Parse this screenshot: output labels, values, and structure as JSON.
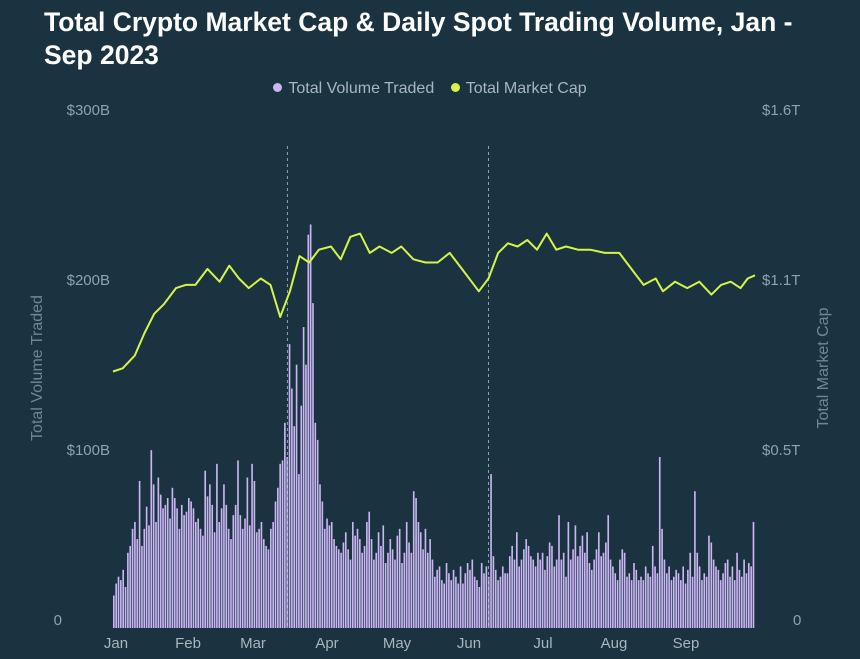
{
  "chart_data": {
    "type": "bar+line",
    "title": "Total Crypto Market Cap & Daily Spot Trading Volume, Jan - Sep 2023",
    "legend": [
      "Total Volume Traded",
      "Total Market Cap"
    ],
    "colors": {
      "volume": "#c9b6f2",
      "market_cap": "#d4f547",
      "background": "#1b3340"
    },
    "y_left": {
      "label": "Total Volume Traded",
      "ticks": [
        "$300B",
        "$200B",
        "$100B",
        "0"
      ],
      "ylim": [
        0,
        300
      ],
      "unit": "B USD"
    },
    "y_right": {
      "label": "Total Market Cap",
      "ticks": [
        "$1.6T",
        "$1.1T",
        "$0.5T",
        "0"
      ],
      "ylim": [
        0,
        1.6
      ],
      "unit": "T USD"
    },
    "x_ticks": [
      "Jan",
      "Feb",
      "Mar",
      "Apr",
      "May",
      "Jun",
      "Jul",
      "Aug",
      "Sep"
    ],
    "legend_position": "top-center",
    "grid": false,
    "vertical_markers_day": [
      73,
      156
    ],
    "volume_series": {
      "name": "Total Volume Traded",
      "days": [
        1,
        266
      ],
      "values_B": [
        19,
        26,
        30,
        28,
        34,
        24,
        44,
        48,
        58,
        62,
        52,
        86,
        48,
        58,
        71,
        60,
        104,
        84,
        62,
        88,
        78,
        70,
        72,
        76,
        64,
        82,
        76,
        70,
        58,
        72,
        66,
        68,
        76,
        74,
        70,
        62,
        64,
        58,
        54,
        92,
        77,
        84,
        72,
        56,
        96,
        62,
        70,
        84,
        72,
        58,
        52,
        66,
        72,
        98,
        66,
        58,
        64,
        88,
        60,
        96,
        86,
        56,
        58,
        62,
        52,
        48,
        46,
        58,
        62,
        74,
        82,
        96,
        98,
        120,
        100,
        166,
        140,
        118,
        154,
        90,
        130,
        176,
        154,
        230,
        236,
        190,
        120,
        110,
        84,
        74,
        58,
        64,
        60,
        62,
        52,
        48,
        46,
        44,
        50,
        56,
        46,
        40,
        62,
        54,
        58,
        52,
        44,
        48,
        62,
        68,
        52,
        40,
        44,
        56,
        48,
        60,
        38,
        44,
        52,
        46,
        40,
        54,
        58,
        38,
        44,
        62,
        50,
        44,
        80,
        76,
        62,
        56,
        46,
        58,
        44,
        52,
        40,
        30,
        34,
        36,
        28,
        26,
        38,
        32,
        28,
        34,
        30,
        26,
        36,
        26,
        32,
        38,
        34,
        40,
        30,
        28,
        24,
        38,
        32,
        36,
        30,
        90,
        42,
        34,
        28,
        30,
        36,
        32,
        32,
        42,
        48,
        40,
        56,
        36,
        40,
        46,
        52,
        48,
        42,
        40,
        36,
        44,
        40,
        44,
        34,
        42,
        50,
        48,
        36,
        40,
        66,
        40,
        44,
        30,
        62,
        40,
        46,
        60,
        42,
        48,
        54,
        44,
        56,
        38,
        34,
        40,
        46,
        56,
        42,
        44,
        50,
        66,
        40,
        36,
        32,
        28,
        40,
        46,
        44,
        30,
        32,
        28,
        38,
        34,
        28,
        30,
        28,
        36,
        32,
        30,
        48,
        36,
        32,
        100,
        58,
        40,
        32,
        36,
        28,
        30,
        34,
        32,
        28,
        36,
        26,
        34,
        44,
        30,
        80,
        44,
        36,
        28,
        32,
        30,
        54,
        50,
        40,
        36,
        34,
        28,
        32,
        38,
        40,
        30,
        36,
        28,
        44,
        34,
        30,
        40,
        32,
        38,
        36,
        62
      ]
    },
    "market_cap_series": {
      "name": "Total Market Cap",
      "points_T": [
        [
          1,
          0.8
        ],
        [
          5,
          0.81
        ],
        [
          10,
          0.85
        ],
        [
          14,
          0.92
        ],
        [
          18,
          0.98
        ],
        [
          22,
          1.01
        ],
        [
          27,
          1.06
        ],
        [
          31,
          1.07
        ],
        [
          35,
          1.07
        ],
        [
          40,
          1.12
        ],
        [
          45,
          1.08
        ],
        [
          49,
          1.13
        ],
        [
          53,
          1.09
        ],
        [
          57,
          1.06
        ],
        [
          62,
          1.09
        ],
        [
          66,
          1.07
        ],
        [
          70,
          0.97
        ],
        [
          74,
          1.05
        ],
        [
          78,
          1.16
        ],
        [
          82,
          1.14
        ],
        [
          86,
          1.18
        ],
        [
          91,
          1.19
        ],
        [
          95,
          1.15
        ],
        [
          99,
          1.22
        ],
        [
          103,
          1.23
        ],
        [
          107,
          1.17
        ],
        [
          111,
          1.19
        ],
        [
          116,
          1.17
        ],
        [
          120,
          1.19
        ],
        [
          125,
          1.15
        ],
        [
          130,
          1.14
        ],
        [
          135,
          1.14
        ],
        [
          140,
          1.17
        ],
        [
          145,
          1.12
        ],
        [
          149,
          1.08
        ],
        [
          152,
          1.05
        ],
        [
          156,
          1.09
        ],
        [
          160,
          1.17
        ],
        [
          164,
          1.2
        ],
        [
          168,
          1.19
        ],
        [
          172,
          1.21
        ],
        [
          176,
          1.18
        ],
        [
          180,
          1.23
        ],
        [
          184,
          1.18
        ],
        [
          188,
          1.19
        ],
        [
          193,
          1.18
        ],
        [
          198,
          1.18
        ],
        [
          204,
          1.17
        ],
        [
          210,
          1.17
        ],
        [
          215,
          1.12
        ],
        [
          220,
          1.07
        ],
        [
          225,
          1.09
        ],
        [
          228,
          1.05
        ],
        [
          233,
          1.08
        ],
        [
          238,
          1.06
        ],
        [
          243,
          1.08
        ],
        [
          248,
          1.04
        ],
        [
          252,
          1.07
        ],
        [
          256,
          1.08
        ],
        [
          260,
          1.06
        ],
        [
          263,
          1.09
        ],
        [
          266,
          1.1
        ]
      ]
    }
  }
}
